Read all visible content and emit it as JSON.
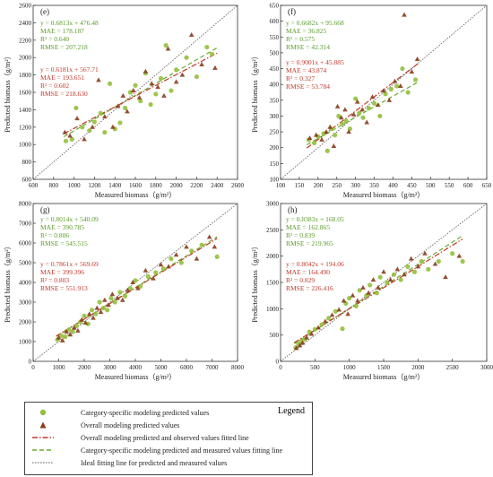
{
  "colors": {
    "category": "#93c03c",
    "overall": "#8a3b1c",
    "category_text": "#5a9a2a",
    "overall_text": "#c0392b",
    "ideal": "#555555"
  },
  "legend": {
    "title": "Legend",
    "items": [
      "Category-specific modeling predicted values",
      "Overall modeling predicted values",
      "Overall modeling predicted and observed values fitted line",
      "Category-specific modeling predicted and measured values fitting line",
      "Ideal fitting line for predicted and measured values"
    ]
  },
  "chart_data": [
    {
      "type": "scatter",
      "panel_label": "(e)",
      "xlabel": "Measured biomass（g/m²）",
      "ylabel": "Predicted biomass（g/m²）",
      "xlim": [
        600,
        2600
      ],
      "ylim": [
        600,
        2600
      ],
      "xticks": [
        600,
        800,
        1000,
        1200,
        1400,
        1600,
        1800,
        2000,
        2200,
        2400,
        2600
      ],
      "yticks": [
        600,
        800,
        1000,
        1200,
        1400,
        1600,
        1800,
        2000,
        2200,
        2400,
        2600
      ],
      "category_fit": {
        "slope": 0.6813,
        "intercept": 476.48,
        "x_range": [
          900,
          2400
        ]
      },
      "overall_fit": {
        "slope": 0.6181,
        "intercept": 567.71,
        "x_range": [
          900,
          2400
        ]
      },
      "category_stats": [
        "y = 0.6813x + 476.48",
        "MAE = 178.187",
        "R² = 0.640",
        "RMSE = 207.218"
      ],
      "overall_stats": [
        "y = 0.6181x + 567.71",
        "MAE = 193.651",
        "R² = 0.602",
        "RMSE = 218.630"
      ],
      "category_points": [
        [
          920,
          1040
        ],
        [
          980,
          1060
        ],
        [
          1020,
          1420
        ],
        [
          1080,
          1200
        ],
        [
          1150,
          1160
        ],
        [
          1200,
          1260
        ],
        [
          1260,
          1360
        ],
        [
          1300,
          1140
        ],
        [
          1350,
          1700
        ],
        [
          1400,
          1180
        ],
        [
          1450,
          1250
        ],
        [
          1500,
          1420
        ],
        [
          1550,
          1600
        ],
        [
          1600,
          1680
        ],
        [
          1650,
          1500
        ],
        [
          1700,
          1820
        ],
        [
          1750,
          1460
        ],
        [
          1800,
          1580
        ],
        [
          1850,
          1760
        ],
        [
          1900,
          2140
        ],
        [
          1950,
          1620
        ],
        [
          2000,
          1860
        ],
        [
          2100,
          2000
        ],
        [
          2200,
          1780
        ],
        [
          2300,
          2120
        ],
        [
          2350,
          2040
        ]
      ],
      "overall_points": [
        [
          910,
          1140
        ],
        [
          960,
          1100
        ],
        [
          1030,
          1300
        ],
        [
          1100,
          1060
        ],
        [
          1180,
          1200
        ],
        [
          1240,
          1740
        ],
        [
          1300,
          1320
        ],
        [
          1380,
          1200
        ],
        [
          1430,
          1440
        ],
        [
          1480,
          1560
        ],
        [
          1520,
          1380
        ],
        [
          1580,
          1620
        ],
        [
          1640,
          1540
        ],
        [
          1700,
          1840
        ],
        [
          1760,
          1700
        ],
        [
          1820,
          1660
        ],
        [
          1880,
          1560
        ],
        [
          1920,
          2100
        ],
        [
          2000,
          1720
        ],
        [
          2060,
          1800
        ],
        [
          2150,
          2260
        ],
        [
          2250,
          1920
        ],
        [
          2380,
          1880
        ]
      ]
    },
    {
      "type": "scatter",
      "panel_label": "(f)",
      "xlabel": "Measured biomass（g/m²）",
      "ylabel": "Predicted biomass（g/m²）",
      "xlim": [
        100,
        650
      ],
      "ylim": [
        100,
        650
      ],
      "xticks": [
        100,
        150,
        200,
        250,
        300,
        350,
        400,
        450,
        500,
        550,
        600,
        650
      ],
      "yticks": [
        100,
        150,
        200,
        250,
        300,
        350,
        400,
        450,
        500,
        550,
        600,
        650
      ],
      "category_fit": {
        "slope": 0.6682,
        "intercept": 95.668,
        "x_range": [
          170,
          470
        ]
      },
      "overall_fit": {
        "slope": 0.9001,
        "intercept": 45.885,
        "x_range": [
          170,
          470
        ]
      },
      "category_stats": [
        "y = 0.6682x + 95.668",
        "MAE = 36.825",
        "R² = 0.575",
        "RMSE = 42.314"
      ],
      "overall_stats": [
        "y = 0.9001x + 45.885",
        "MAE = 43.874",
        "R² = 0.327",
        "RMSE = 53.784"
      ],
      "category_points": [
        [
          175,
          225
        ],
        [
          190,
          215
        ],
        [
          200,
          235
        ],
        [
          215,
          245
        ],
        [
          225,
          190
        ],
        [
          235,
          260
        ],
        [
          245,
          240
        ],
        [
          255,
          300
        ],
        [
          265,
          275
        ],
        [
          275,
          285
        ],
        [
          285,
          260
        ],
        [
          300,
          355
        ],
        [
          310,
          310
        ],
        [
          320,
          295
        ],
        [
          335,
          325
        ],
        [
          350,
          340
        ],
        [
          365,
          300
        ],
        [
          380,
          370
        ],
        [
          395,
          385
        ],
        [
          410,
          395
        ],
        [
          425,
          450
        ],
        [
          440,
          375
        ],
        [
          460,
          415
        ]
      ],
      "overall_points": [
        [
          178,
          230
        ],
        [
          195,
          240
        ],
        [
          210,
          225
        ],
        [
          222,
          250
        ],
        [
          232,
          265
        ],
        [
          242,
          205
        ],
        [
          252,
          330
        ],
        [
          262,
          295
        ],
        [
          272,
          320
        ],
        [
          282,
          250
        ],
        [
          295,
          305
        ],
        [
          305,
          345
        ],
        [
          318,
          320
        ],
        [
          330,
          280
        ],
        [
          345,
          360
        ],
        [
          360,
          335
        ],
        [
          375,
          380
        ],
        [
          390,
          350
        ],
        [
          405,
          410
        ],
        [
          420,
          395
        ],
        [
          430,
          620
        ],
        [
          450,
          440
        ],
        [
          465,
          480
        ]
      ]
    },
    {
      "type": "scatter",
      "panel_label": "(g)",
      "xlabel": "Measured biomass（g/m²）",
      "ylabel": "Predicted biomass（g/m²）",
      "xlim": [
        0,
        8000
      ],
      "ylim": [
        0,
        8000
      ],
      "xticks": [
        0,
        1000,
        2000,
        3000,
        4000,
        5000,
        6000,
        7000,
        8000
      ],
      "yticks": [
        0,
        1000,
        2000,
        3000,
        4000,
        5000,
        6000,
        7000,
        8000
      ],
      "category_fit": {
        "slope": 0.8014,
        "intercept": 540.09,
        "x_range": [
          900,
          7200
        ]
      },
      "overall_fit": {
        "slope": 0.7861,
        "intercept": 569.69,
        "x_range": [
          900,
          7200
        ]
      },
      "category_stats": [
        "y = 0.8014x + 540.09",
        "MAE = 390.785",
        "R² = 0.806",
        "RMSE = 545.515"
      ],
      "overall_stats": [
        "y = 0.7861x + 569.69",
        "MAE = 399.396",
        "R² = 0.803",
        "RMSE = 551.913"
      ],
      "category_points": [
        [
          950,
          1100
        ],
        [
          1100,
          1300
        ],
        [
          1250,
          1250
        ],
        [
          1400,
          1600
        ],
        [
          1550,
          1500
        ],
        [
          1700,
          1800
        ],
        [
          1850,
          2000
        ],
        [
          2000,
          2300
        ],
        [
          2150,
          1900
        ],
        [
          2300,
          2600
        ],
        [
          2450,
          2400
        ],
        [
          2600,
          3000
        ],
        [
          2750,
          2700
        ],
        [
          2900,
          2600
        ],
        [
          3050,
          3200
        ],
        [
          3200,
          3000
        ],
        [
          3400,
          3500
        ],
        [
          3600,
          3300
        ],
        [
          3800,
          3700
        ],
        [
          4000,
          4100
        ],
        [
          4200,
          3800
        ],
        [
          4500,
          4300
        ],
        [
          4800,
          4500
        ],
        [
          5100,
          4700
        ],
        [
          5400,
          5200
        ],
        [
          5800,
          5000
        ],
        [
          6200,
          5600
        ],
        [
          6600,
          5900
        ],
        [
          7200,
          5300
        ]
      ],
      "overall_points": [
        [
          1000,
          1200
        ],
        [
          1150,
          1050
        ],
        [
          1300,
          1500
        ],
        [
          1450,
          1350
        ],
        [
          1600,
          1700
        ],
        [
          1750,
          1550
        ],
        [
          1900,
          2100
        ],
        [
          2050,
          1950
        ],
        [
          2200,
          2400
        ],
        [
          2350,
          2200
        ],
        [
          2500,
          2700
        ],
        [
          2650,
          2500
        ],
        [
          2800,
          3100
        ],
        [
          2950,
          2850
        ],
        [
          3100,
          3400
        ],
        [
          3300,
          3200
        ],
        [
          3500,
          3100
        ],
        [
          3700,
          3600
        ],
        [
          3900,
          4000
        ],
        [
          4100,
          3700
        ],
        [
          4400,
          4600
        ],
        [
          4700,
          4200
        ],
        [
          5000,
          4900
        ],
        [
          5300,
          4800
        ],
        [
          5600,
          5400
        ],
        [
          6000,
          5800
        ],
        [
          6400,
          5200
        ],
        [
          6900,
          6300
        ],
        [
          7100,
          5800
        ]
      ]
    },
    {
      "type": "scatter",
      "panel_label": "(h)",
      "xlabel": "Measured biomass（g/m²）",
      "ylabel": "Predicted biomass（g/m²）",
      "xlim": [
        0,
        3000
      ],
      "ylim": [
        0,
        3000
      ],
      "xticks": [
        0,
        500,
        1000,
        1500,
        2000,
        2500,
        3000
      ],
      "yticks": [
        0,
        500,
        1000,
        1500,
        2000,
        2500,
        3000
      ],
      "category_fit": {
        "slope": 0.8383,
        "intercept": 168.05,
        "x_range": [
          200,
          2650
        ]
      },
      "overall_fit": {
        "slope": 0.8042,
        "intercept": 194.06,
        "x_range": [
          200,
          2650
        ]
      },
      "category_stats": [
        "y = 0.8383x + 168.05",
        "MAE = 162.865",
        "R² = 0.839",
        "RMSE = 219.965"
      ],
      "overall_stats": [
        "y = 0.8042x + 194.06",
        "MAE = 164.490",
        "R² = 0.829",
        "RMSE = 226.416"
      ],
      "category_points": [
        [
          220,
          260
        ],
        [
          260,
          330
        ],
        [
          300,
          380
        ],
        [
          350,
          420
        ],
        [
          420,
          560
        ],
        [
          500,
          610
        ],
        [
          600,
          700
        ],
        [
          700,
          820
        ],
        [
          800,
          950
        ],
        [
          900,
          620
        ],
        [
          950,
          1100
        ],
        [
          1000,
          1200
        ],
        [
          1100,
          1050
        ],
        [
          1150,
          1350
        ],
        [
          1250,
          1250
        ],
        [
          1300,
          1450
        ],
        [
          1400,
          1300
        ],
        [
          1450,
          1600
        ],
        [
          1550,
          1500
        ],
        [
          1650,
          1650
        ],
        [
          1750,
          1550
        ],
        [
          1850,
          1800
        ],
        [
          1950,
          1700
        ],
        [
          2050,
          1900
        ],
        [
          2150,
          1750
        ],
        [
          2300,
          1900
        ],
        [
          2500,
          2050
        ],
        [
          2650,
          1900
        ]
      ],
      "overall_points": [
        [
          230,
          250
        ],
        [
          280,
          300
        ],
        [
          320,
          350
        ],
        [
          380,
          450
        ],
        [
          450,
          520
        ],
        [
          550,
          640
        ],
        [
          650,
          760
        ],
        [
          750,
          880
        ],
        [
          850,
          980
        ],
        [
          920,
          1150
        ],
        [
          980,
          900
        ],
        [
          1050,
          1250
        ],
        [
          1120,
          1150
        ],
        [
          1200,
          1400
        ],
        [
          1280,
          1300
        ],
        [
          1350,
          1550
        ],
        [
          1420,
          1400
        ],
        [
          1500,
          1700
        ],
        [
          1600,
          1550
        ],
        [
          1700,
          1750
        ],
        [
          1800,
          1650
        ],
        [
          1900,
          1950
        ],
        [
          2000,
          1800
        ],
        [
          2100,
          2050
        ],
        [
          2250,
          1850
        ],
        [
          2400,
          1600
        ],
        [
          2600,
          2000
        ]
      ]
    }
  ]
}
